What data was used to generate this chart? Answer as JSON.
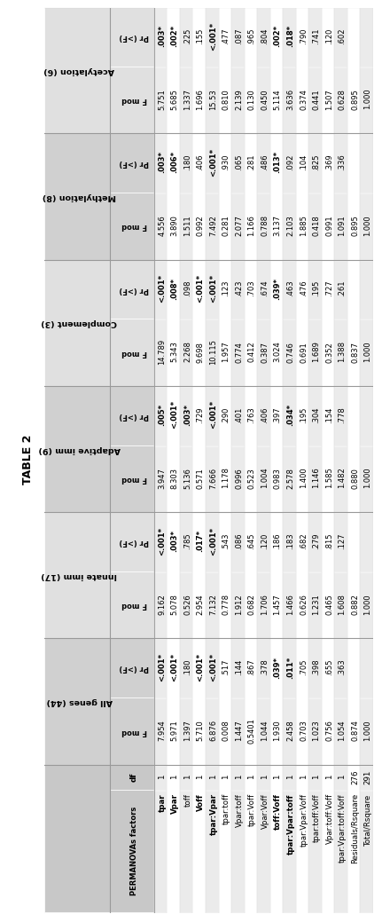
{
  "title": "TABLE 2",
  "col_groups": [
    {
      "name": "All genes (44)"
    },
    {
      "name": "Innate imm (17)"
    },
    {
      "name": "Adaptive imm (9)"
    },
    {
      "name": "Complement (3)"
    },
    {
      "name": "Methylation (8)"
    },
    {
      "name": "Acetylation (6)"
    }
  ],
  "row_labels": [
    "tpar",
    "Vpar",
    "toff",
    "Voff",
    "tpar:Vpar",
    "tpar:toff",
    "Vpar:toff",
    "tpar:Voff",
    "Vpar:Voff",
    "toff:Voff",
    "tpar:Vpar:toff",
    "tpar:Vpar:Voff",
    "tpar:toff:Voff",
    "Vpar:toff:Voff",
    "tpar:Vpar:toff:Voff",
    "Residuals/Rsquare",
    "Total/Rsquare"
  ],
  "data": [
    [
      1,
      "7.954",
      "<.001*",
      "9.162",
      "<.001*",
      "3.947",
      ".005*",
      "14.789",
      "<.001*",
      "4.556",
      ".003*",
      "5.751",
      ".003*"
    ],
    [
      1,
      "5.971",
      "<.001*",
      "5.078",
      ".003*",
      "8.303",
      "<.001*",
      "5.343",
      ".008*",
      "3.890",
      ".006*",
      "5.685",
      ".002*"
    ],
    [
      1,
      "1.397",
      ".180",
      "0.526",
      ".785",
      "5.136",
      ".003*",
      "2.268",
      ".098",
      "1.511",
      ".180",
      "1.337",
      ".225"
    ],
    [
      1,
      "5.710",
      "<.001*",
      "2.954",
      ".017*",
      "0.571",
      ".729",
      "9.698",
      "<.001*",
      "0.992",
      ".406",
      "1.696",
      ".155"
    ],
    [
      1,
      "6.876",
      "<.001*",
      "7.132",
      "<.001*",
      "7.666",
      "<.001*",
      "10.115",
      "<.001*",
      "7.492",
      "<.001*",
      "15.53",
      "<.001*"
    ],
    [
      1,
      "0.008",
      ".517",
      "0.778",
      ".543",
      "1.178",
      ".290",
      "1.957",
      ".123",
      "0.281",
      ".930",
      "0.810",
      ".477"
    ],
    [
      1,
      "1.447",
      ".144",
      "1.912",
      ".086",
      "0.996",
      ".401",
      "0.774",
      ".423",
      "2.077",
      ".065",
      "2.139",
      ".087"
    ],
    [
      1,
      "0.5401",
      ".867",
      "0.682",
      ".645",
      "0.523",
      ".763",
      "0.412",
      ".703",
      "1.166",
      ".281",
      "0.130",
      ".965"
    ],
    [
      1,
      "1.044",
      ".378",
      "1.706",
      ".120",
      "1.004",
      ".406",
      "0.387",
      ".674",
      "0.788",
      ".486",
      "0.450",
      ".804"
    ],
    [
      1,
      "1.930",
      ".039*",
      "1.457",
      ".186",
      "0.983",
      ".397",
      "3.024",
      ".039*",
      "3.137",
      ".013*",
      "5.114",
      ".002*"
    ],
    [
      1,
      "2.458",
      ".011*",
      "1.466",
      ".183",
      "2.578",
      ".034*",
      "0.746",
      ".463",
      "2.103",
      ".092",
      "3.636",
      ".018*"
    ],
    [
      1,
      "0.703",
      ".705",
      "0.626",
      ".682",
      "1.400",
      ".195",
      "0.691",
      ".476",
      "1.885",
      ".104",
      "0.374",
      ".790"
    ],
    [
      1,
      "1.023",
      ".398",
      "1.231",
      ".279",
      "1.146",
      ".304",
      "1.689",
      ".195",
      "0.418",
      ".825",
      "0.441",
      ".741"
    ],
    [
      1,
      "0.756",
      ".655",
      "0.465",
      ".815",
      "1.585",
      ".154",
      "0.352",
      ".727",
      "0.991",
      ".369",
      "1.507",
      ".120"
    ],
    [
      1,
      "1.054",
      ".363",
      "1.608",
      ".127",
      "1.482",
      ".778",
      "1.388",
      ".261",
      "1.091",
      ".336",
      "0.628",
      ".602"
    ],
    [
      276,
      "0.874",
      "",
      "0.882",
      "",
      "0.880",
      "",
      "0.837",
      "",
      "0.895",
      "",
      "0.895",
      ""
    ],
    [
      291,
      "1.000",
      "",
      "1.000",
      "",
      "1.000",
      "",
      "1.000",
      "",
      "1.000",
      "",
      "1.000",
      ""
    ]
  ],
  "sig_rows": [
    0,
    1,
    3,
    4,
    9,
    10
  ],
  "color_light": "#ebebeb",
  "color_white": "#ffffff",
  "color_header": "#c8c8c8",
  "color_subheader": "#d8d8d8",
  "color_group1": "#d0d0d0",
  "color_group2": "#e0e0e0"
}
